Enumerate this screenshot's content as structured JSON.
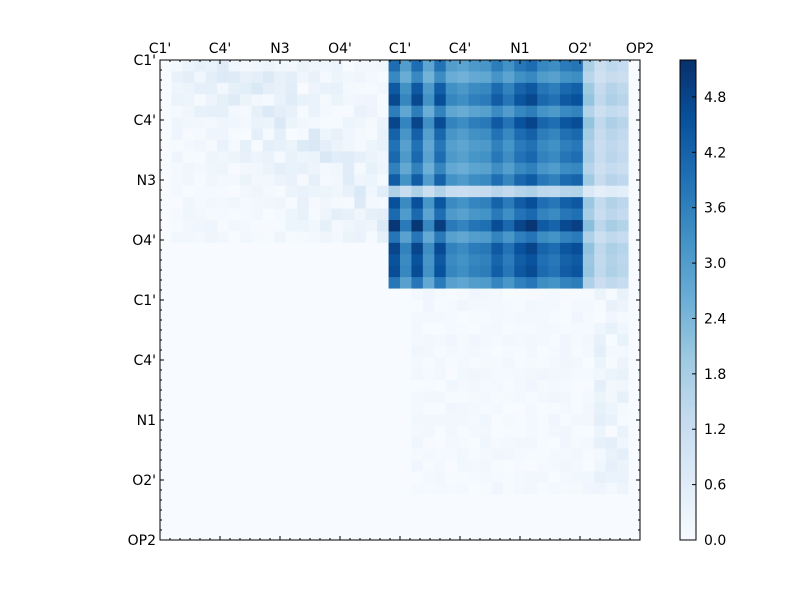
{
  "chart_data": {
    "type": "heatmap",
    "title": "",
    "xlabel": "",
    "ylabel": "",
    "n_rows": 42,
    "n_cols": 42,
    "tick_indices": [
      0,
      6,
      12,
      18,
      24,
      30,
      36,
      42,
      48
    ],
    "x_tick_labels": [
      "C1'",
      "C4'",
      "N3",
      "O4'",
      "C1'",
      "C4'",
      "N1",
      "O2'",
      "OP2"
    ],
    "y_tick_labels": [
      "C1'",
      "C4'",
      "N3",
      "O4'",
      "C1'",
      "C4'",
      "N1",
      "O2'",
      "OP2"
    ],
    "colormap": "Blues",
    "colormap_stops": [
      "#f7fbff",
      "#deebf7",
      "#c6dbef",
      "#9ecae1",
      "#6baed6",
      "#4292c6",
      "#2171b5",
      "#08519c",
      "#08306b"
    ],
    "vmin": 0.0,
    "vmax": 5.2,
    "colorbar_ticks": [
      "0.0",
      "0.6",
      "1.2",
      "1.8",
      "2.4",
      "3.0",
      "3.6",
      "4.2",
      "4.8"
    ],
    "blocks": {
      "strong_block": {
        "rows": [
          0,
          20
        ],
        "cols": [
          20,
          41
        ],
        "approx_range": [
          1.0,
          5.2
        ]
      },
      "weak_block_top_left": {
        "rows": [
          0,
          16
        ],
        "cols": [
          1,
          20
        ],
        "approx_range": [
          0.0,
          1.2
        ]
      },
      "weak_block_bottom_right": {
        "rows": [
          20,
          38
        ],
        "cols": [
          22,
          41
        ],
        "approx_range": [
          0.0,
          1.0
        ]
      }
    }
  }
}
